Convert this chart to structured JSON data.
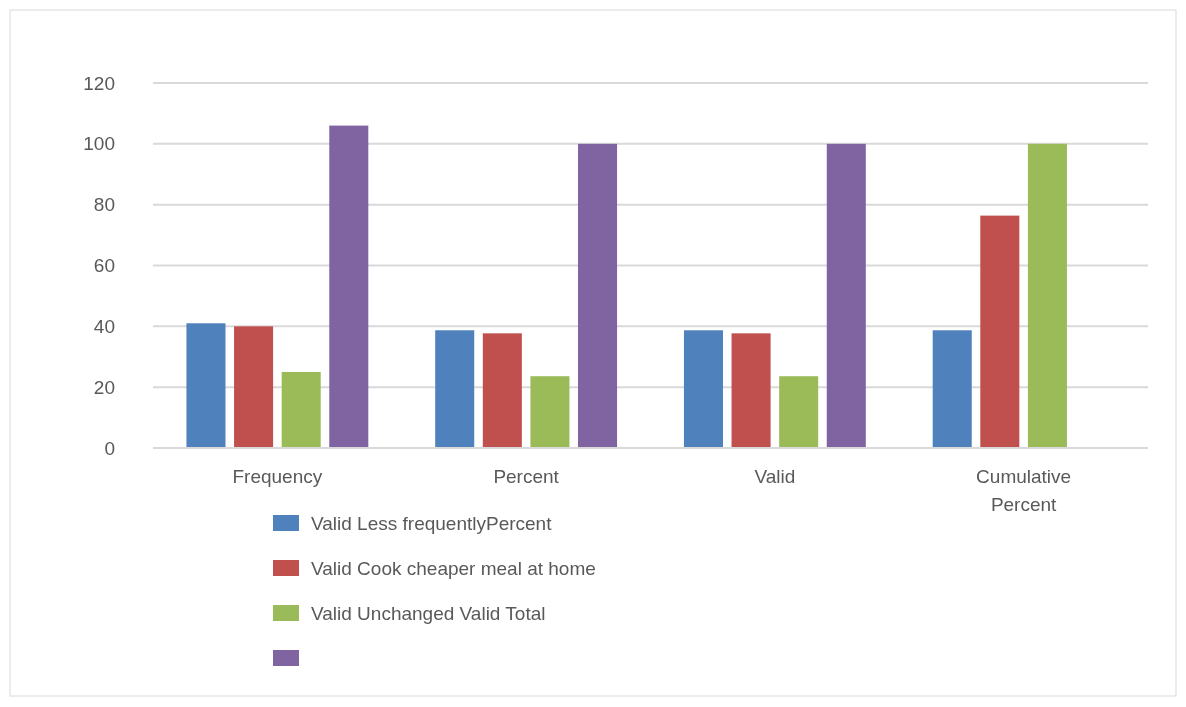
{
  "chart_data": {
    "type": "bar",
    "categories": [
      "Frequency",
      "Percent",
      "Valid",
      "Cumulative Percent"
    ],
    "series": [
      {
        "name": "Valid Less frequentlyPercent",
        "color": "#4f81bd",
        "values": [
          41,
          38.7,
          38.7,
          38.7
        ]
      },
      {
        "name": "Valid Cook cheaper meal at home",
        "color": "#c0504d",
        "values": [
          40,
          37.7,
          37.7,
          76.4
        ]
      },
      {
        "name": "Valid Unchanged Valid Total",
        "color": "#9bbb59",
        "values": [
          25,
          23.6,
          23.6,
          100
        ]
      },
      {
        "color": "#8064a2",
        "values": [
          106,
          100,
          100,
          null
        ]
      }
    ],
    "ylim": [
      0,
      120
    ],
    "yticks": [
      0,
      20,
      40,
      60,
      80,
      100,
      120
    ],
    "grid": "y",
    "legend": "bottom left"
  }
}
